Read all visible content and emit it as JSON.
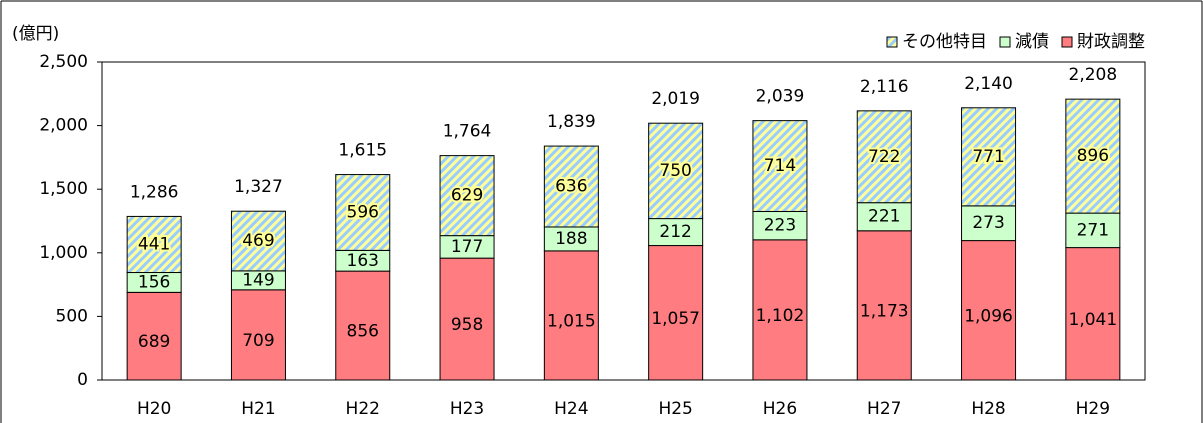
{
  "chart_data": {
    "type": "stacked_bar",
    "y_label": "(億円)",
    "categories": [
      "H20",
      "H21",
      "H22",
      "H23",
      "H24",
      "H25",
      "H26",
      "H27",
      "H28",
      "H29"
    ],
    "series": [
      {
        "name": "財政調整",
        "color": "#ff7c80",
        "values": [
          689,
          709,
          856,
          958,
          1015,
          1057,
          1102,
          1173,
          1096,
          1041
        ],
        "value_labels": [
          "689",
          "709",
          "856",
          "958",
          "1,015",
          "1,057",
          "1,102",
          "1,173",
          "1,096",
          "1,041"
        ]
      },
      {
        "name": "減債",
        "color": "#ccffcc",
        "values": [
          156,
          149,
          163,
          177,
          188,
          212,
          223,
          221,
          273,
          271
        ]
      },
      {
        "name": "その他特目",
        "color": "#ffff99",
        "hatch_color": "#99ccff",
        "values": [
          441,
          469,
          596,
          629,
          636,
          750,
          714,
          722,
          771,
          896
        ]
      }
    ],
    "totals": [
      1286,
      1327,
      1615,
      1764,
      1839,
      2019,
      2039,
      2116,
      2140,
      2208
    ],
    "total_labels": [
      "1,286",
      "1,327",
      "1,615",
      "1,764",
      "1,839",
      "2,019",
      "2,039",
      "2,116",
      "2,140",
      "2,208"
    ],
    "ylim": [
      0,
      2500
    ],
    "yticks": [
      0,
      {
        "value": 500,
        "label": "500"
      },
      {
        "value": 1000,
        "label": "1,000"
      },
      {
        "value": 1500,
        "label": "1,500"
      },
      {
        "value": 2000,
        "label": "2,000"
      },
      {
        "value": 2500,
        "label": "2,500"
      }
    ],
    "grid": false,
    "legend": "top-right"
  }
}
